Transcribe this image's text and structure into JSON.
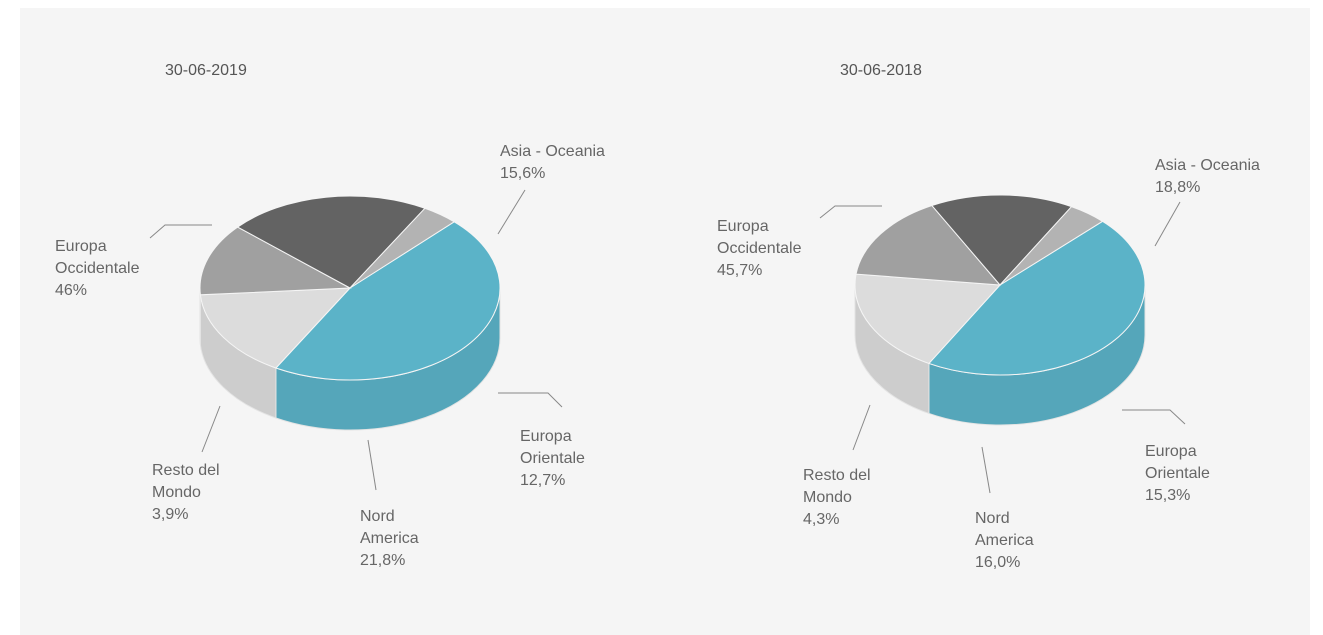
{
  "chart_data": [
    {
      "type": "pie3d",
      "title": "30-06-2019",
      "categories": [
        "Europa Occidentale",
        "Asia - Oceania",
        "Europa Orientale",
        "Nord America",
        "Resto del Mondo"
      ],
      "values": [
        46,
        15.6,
        12.7,
        21.8,
        3.9
      ],
      "value_labels": [
        "46%",
        "15,6%",
        "12,7%",
        "21,8%",
        "3,9%"
      ],
      "colors": [
        "#5bb3c8",
        "#dcdcdc",
        "#a0a0a0",
        "#636363",
        "#b3b3b3"
      ]
    },
    {
      "type": "pie3d",
      "title": "30-06-2018",
      "categories": [
        "Europa Occidentale",
        "Asia - Oceania",
        "Europa Orientale",
        "Nord America",
        "Resto del Mondo"
      ],
      "values": [
        45.7,
        18.8,
        15.3,
        16.0,
        4.3
      ],
      "value_labels": [
        "45,7%",
        "18,8%",
        "15,3%",
        "16,0%",
        "4,3%"
      ],
      "colors": [
        "#5bb3c8",
        "#dcdcdc",
        "#a0a0a0",
        "#636363",
        "#b3b3b3"
      ]
    }
  ]
}
